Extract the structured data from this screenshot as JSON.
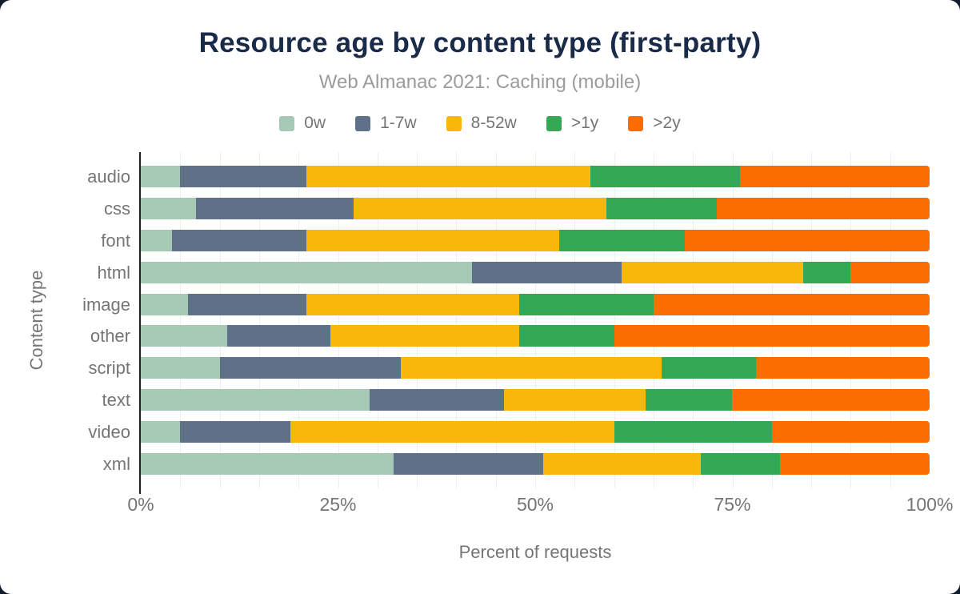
{
  "header": {
    "title": "Resource age by content type (first-party)",
    "subtitle": "Web Almanac 2021: Caching (mobile)"
  },
  "chart_data": {
    "type": "bar",
    "orientation": "horizontal",
    "stacked": true,
    "title": "Resource age by content type (first-party)",
    "subtitle": "Web Almanac 2021: Caching (mobile)",
    "xlabel": "Percent of requests",
    "ylabel": "Content type",
    "xlim": [
      0,
      100
    ],
    "x_ticks": [
      "0%",
      "25%",
      "50%",
      "75%",
      "100%"
    ],
    "grid_step_pct": 5,
    "legend_position": "top",
    "categories": [
      "audio",
      "css",
      "font",
      "html",
      "image",
      "other",
      "script",
      "text",
      "video",
      "xml"
    ],
    "series": [
      {
        "name": "0w",
        "color": "#a6c9b6",
        "values": [
          5,
          7,
          4,
          42,
          6,
          11,
          10,
          29,
          5,
          32
        ]
      },
      {
        "name": "1-7w",
        "color": "#5f7189",
        "values": [
          16,
          20,
          17,
          19,
          15,
          13,
          23,
          17,
          14,
          19
        ]
      },
      {
        "name": "8-52w",
        "color": "#f9b70b",
        "values": [
          36,
          32,
          32,
          23,
          27,
          24,
          33,
          18,
          41,
          20
        ]
      },
      {
        "name": ">1y",
        "color": "#35a853",
        "values": [
          19,
          14,
          16,
          6,
          17,
          12,
          12,
          11,
          20,
          10
        ]
      },
      {
        "name": ">2y",
        "color": "#fb6d00",
        "values": [
          24,
          27,
          31,
          10,
          35,
          40,
          22,
          25,
          20,
          19
        ]
      }
    ],
    "colors": {
      "title_text": "#1a2b49",
      "muted_text": "#757575",
      "subtitle_text": "#9b9b9b",
      "gridline": "#efefef",
      "axis_line": "#202124"
    }
  }
}
